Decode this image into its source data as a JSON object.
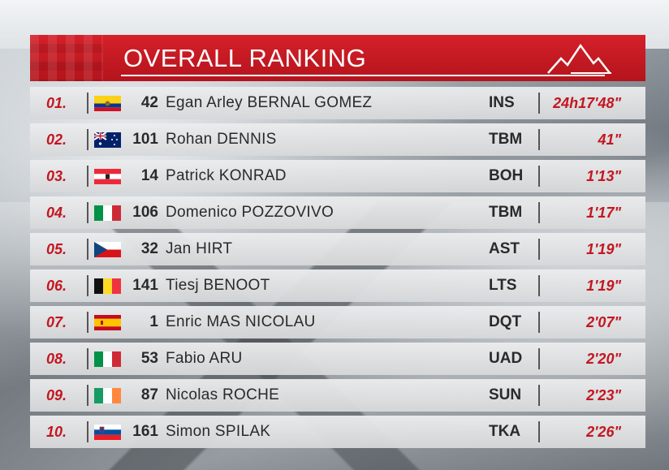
{
  "header": {
    "title": "OVERALL RANKING"
  },
  "colors": {
    "accent": "#c41620",
    "header_bg": "#c8161f"
  },
  "rows": [
    {
      "pos": "01.",
      "flag": "flag-colombia-icon",
      "num": "42",
      "name": "Egan Arley BERNAL GOMEZ",
      "team": "INS",
      "time": "24h17'48\""
    },
    {
      "pos": "02.",
      "flag": "flag-australia-icon",
      "num": "101",
      "name": "Rohan DENNIS",
      "team": "TBM",
      "time": "41\""
    },
    {
      "pos": "03.",
      "flag": "flag-austria-icon",
      "num": "14",
      "name": "Patrick KONRAD",
      "team": "BOH",
      "time": "1'13\""
    },
    {
      "pos": "04.",
      "flag": "flag-italy-icon",
      "num": "106",
      "name": "Domenico POZZOVIVO",
      "team": "TBM",
      "time": "1'17\""
    },
    {
      "pos": "05.",
      "flag": "flag-czechia-icon",
      "num": "32",
      "name": "Jan HIRT",
      "team": "AST",
      "time": "1'19\""
    },
    {
      "pos": "06.",
      "flag": "flag-belgium-icon",
      "num": "141",
      "name": "Tiesj BENOOT",
      "team": "LTS",
      "time": "1'19\""
    },
    {
      "pos": "07.",
      "flag": "flag-spain-icon",
      "num": "1",
      "name": "Enric MAS NICOLAU",
      "team": "DQT",
      "time": "2'07\""
    },
    {
      "pos": "08.",
      "flag": "flag-italy-icon",
      "num": "53",
      "name": "Fabio ARU",
      "team": "UAD",
      "time": "2'20\""
    },
    {
      "pos": "09.",
      "flag": "flag-ireland-icon",
      "num": "87",
      "name": "Nicolas ROCHE",
      "team": "SUN",
      "time": "2'23\""
    },
    {
      "pos": "10.",
      "flag": "flag-slovenia-icon",
      "num": "161",
      "name": "Simon SPILAK",
      "team": "TKA",
      "time": "2'26\""
    }
  ]
}
